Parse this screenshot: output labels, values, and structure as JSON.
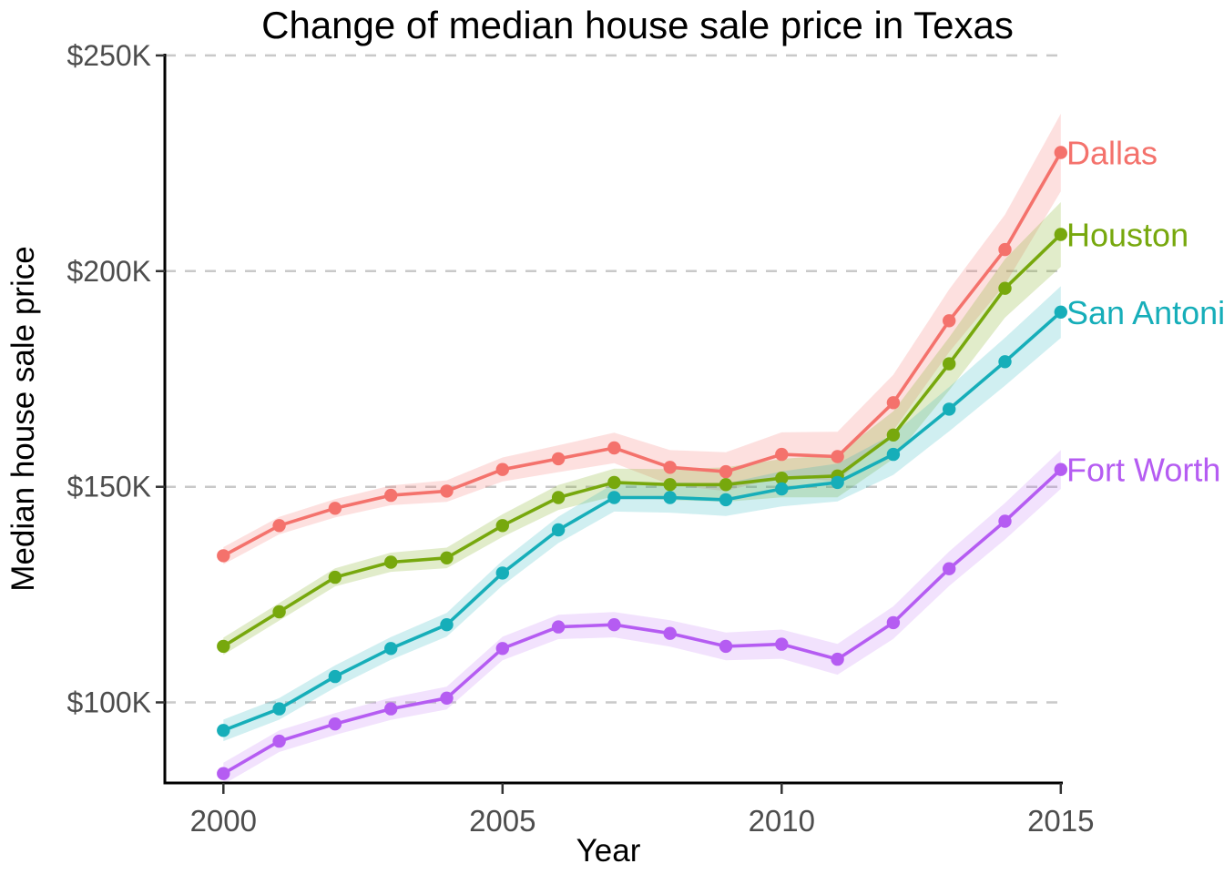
{
  "chart_data": {
    "type": "line",
    "title": "Change of median house sale price in Texas",
    "xlabel": "Year",
    "ylabel": "Median house sale price",
    "unit": "USD thousands",
    "x": [
      2000,
      2001,
      2002,
      2003,
      2004,
      2005,
      2006,
      2007,
      2008,
      2009,
      2010,
      2011,
      2012,
      2013,
      2014,
      2015
    ],
    "x_ticks": [
      {
        "value": 2000,
        "label": "2000"
      },
      {
        "value": 2005,
        "label": "2005"
      },
      {
        "value": 2010,
        "label": "2010"
      },
      {
        "value": 2015,
        "label": "2015"
      }
    ],
    "y_ticks": [
      {
        "value": 100,
        "label": "$100K"
      },
      {
        "value": 150,
        "label": "$150K"
      },
      {
        "value": 200,
        "label": "$200K"
      },
      {
        "value": 250,
        "label": "$250K"
      }
    ],
    "xlim": [
      1999,
      2015
    ],
    "ylim": [
      81,
      250
    ],
    "grid": "horizontal-dashed",
    "legend_position": "direct-labels-right",
    "series": [
      {
        "name": "Dallas",
        "label": "Dallas",
        "color": "#F4726C",
        "band_opacity": 0.22,
        "band_start_k": 2,
        "band_end_k": 9,
        "values": [
          134,
          141,
          145,
          148,
          149,
          154,
          156.5,
          159,
          154.5,
          153.5,
          157.5,
          157,
          169.5,
          188.5,
          205,
          227.5
        ]
      },
      {
        "name": "Houston",
        "label": "Houston",
        "color": "#77A80D",
        "band_opacity": 0.22,
        "band_start_k": 2,
        "band_end_k": 7.5,
        "values": [
          113,
          121,
          129,
          132.5,
          133.5,
          141,
          147.5,
          151,
          150.5,
          150.5,
          152,
          152.5,
          162,
          178.5,
          196,
          208.5
        ]
      },
      {
        "name": "San Antonio",
        "label": "San Antonio",
        "color": "#16AEB9",
        "band_opacity": 0.2,
        "band_start_k": 2.5,
        "band_end_k": 6,
        "values": [
          93.5,
          98.5,
          106,
          112.5,
          118,
          130,
          140,
          147.5,
          147.5,
          147,
          149.5,
          151,
          157.5,
          168,
          179,
          190.5
        ]
      },
      {
        "name": "Fort Worth",
        "label": "Fort Worth",
        "color": "#B55CF2",
        "band_opacity": 0.18,
        "band_start_k": 2.5,
        "band_end_k": 4.5,
        "values": [
          83.5,
          91,
          95,
          98.5,
          101,
          112.5,
          117.5,
          118,
          116,
          113,
          113.5,
          110,
          118.5,
          131,
          142,
          154
        ]
      }
    ],
    "style": {
      "axis_color": "#000000",
      "tick_color": "#333333",
      "tick_label_color": "#4D4D4D",
      "gridline_color": "#C9C9C9",
      "title_color": "#000000"
    }
  }
}
